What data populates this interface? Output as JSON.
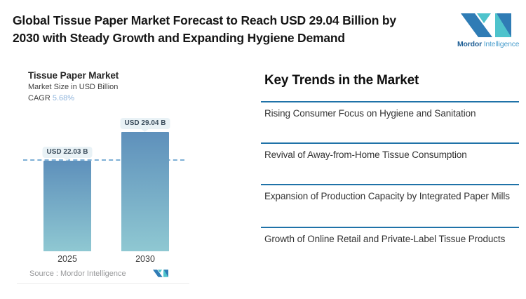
{
  "header": {
    "title_line1": "Global Tissue Paper Market Forecast to Reach USD 29.04 Billion by",
    "title_line2": "2030 with Steady Growth and Expanding Hygiene Demand",
    "logo": {
      "brand_primary": "Mordor",
      "brand_secondary": "Intelligence"
    }
  },
  "chart": {
    "title": "Tissue Paper Market",
    "subtitle": "Market Size in USD Billion",
    "cagr_label": "CAGR",
    "cagr_value": "5.68%",
    "source_label": "Source :",
    "source_value": "Mordor Intelligence"
  },
  "chart_data": {
    "type": "bar",
    "title": "Tissue Paper Market",
    "ylabel": "Market Size in USD Billion",
    "categories": [
      "2025",
      "2030"
    ],
    "values": [
      22.03,
      29.04
    ],
    "value_labels": [
      "USD 22.03 B",
      "USD 29.04 B"
    ],
    "unit": "USD Billion",
    "ylim": [
      0,
      30
    ],
    "cagr_percent": 5.68,
    "reference_line": 22.03,
    "grid": false,
    "legend": false
  },
  "trends": {
    "heading": "Key Trends in the Market",
    "items": [
      "Rising Consumer Focus on Hygiene and Sanitation",
      "Revival of Away-from-Home Tissue Consumption",
      "Expansion of Production Capacity by Integrated Paper Mills",
      "Growth of Online Retail and Private-Label Tissue Products"
    ]
  },
  "colors": {
    "bar_top": "#5E90BB",
    "bar_bottom": "#8FC8D2",
    "reference_line": "#7FB0D6",
    "badge_bg": "#E9F2F6",
    "badge_text": "#3B4D5C",
    "trend_rule": "#1F72A8",
    "cagr_accent": "#8FB4DC",
    "brand_dark_blue": "#2F7CB5",
    "brand_teal": "#4EC3CC"
  }
}
